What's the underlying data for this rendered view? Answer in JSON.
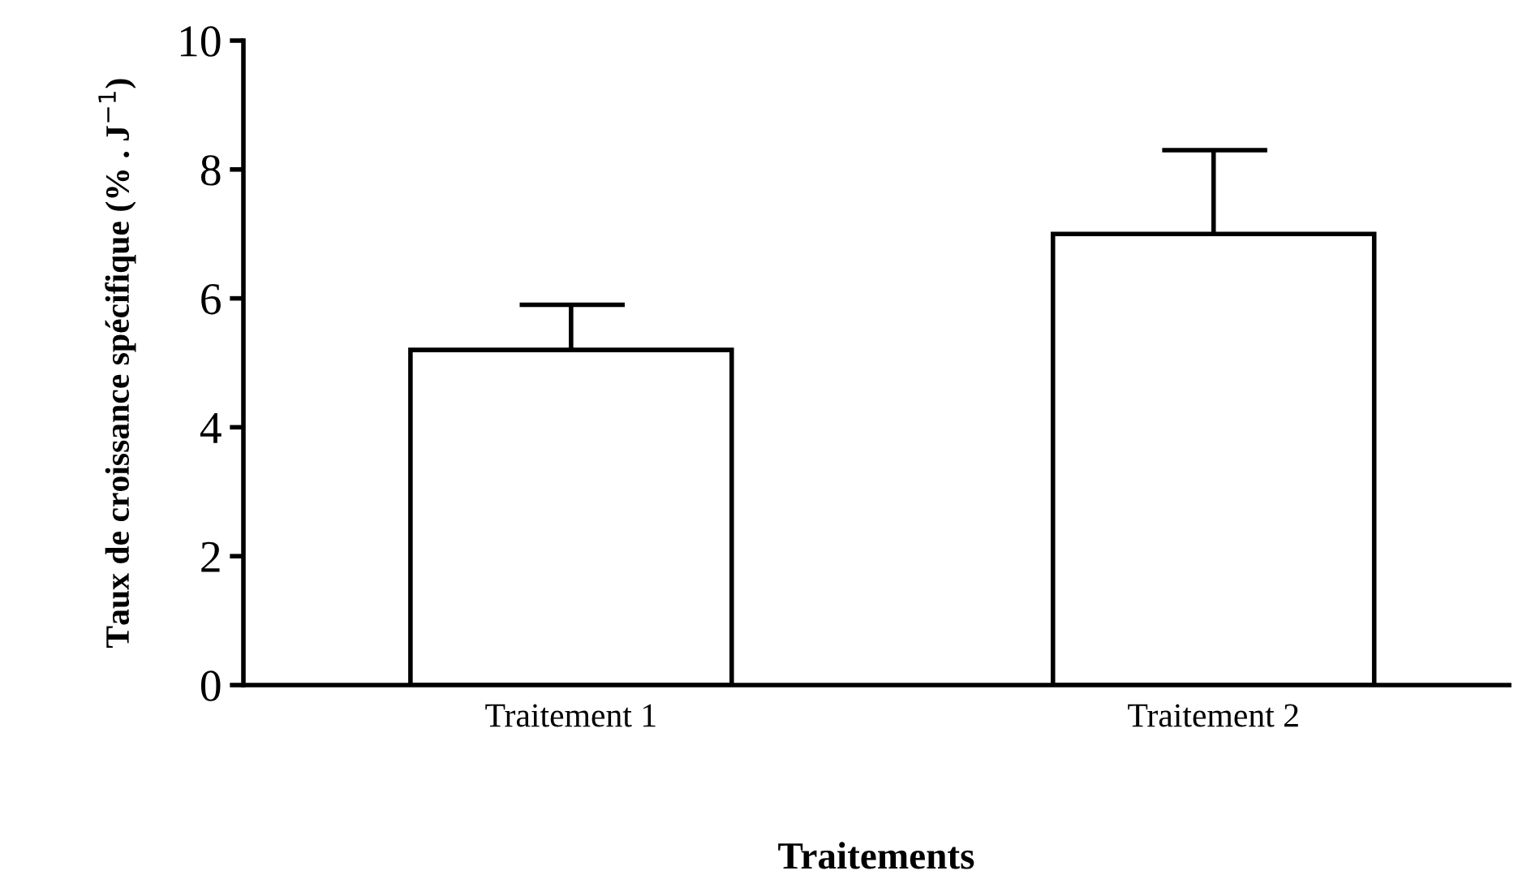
{
  "chart_data": {
    "type": "bar",
    "xlabel": "Traitements",
    "ylabel": "Taux de croissance spécifique (% . J$^{−1}$)",
    "categories": [
      "Traitement 1",
      "Traitement 2"
    ],
    "values": [
      5.2,
      7.0
    ],
    "errors": [
      [
        5.2,
        5.9
      ],
      [
        7.0,
        8.3
      ]
    ],
    "color": "#ffffff",
    "ylim": [
      0,
      10
    ],
    "yticks": [
      0,
      2,
      4,
      6,
      8,
      10
    ],
    "grid": false,
    "legend": false
  }
}
